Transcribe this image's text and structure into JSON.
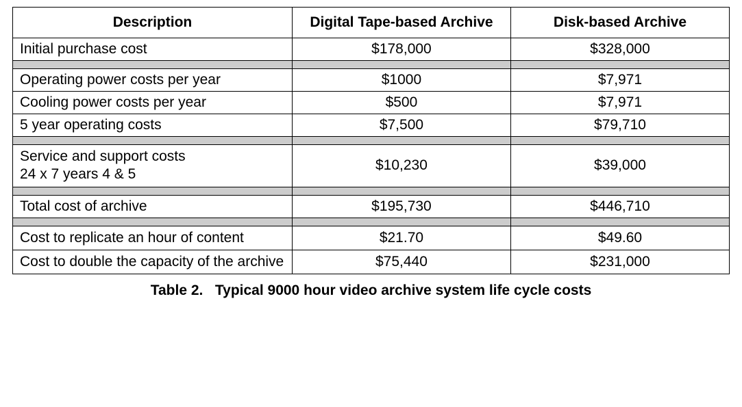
{
  "table": {
    "type": "table",
    "columns": [
      {
        "label": "Description",
        "align": "left",
        "width_pct": 39
      },
      {
        "label": "Digital Tape-based Archive",
        "align": "center",
        "width_pct": 30.5
      },
      {
        "label": "Disk-based Archive",
        "align": "center",
        "width_pct": 30.5
      }
    ],
    "sections": [
      {
        "rows": [
          {
            "desc": "Initial purchase cost",
            "col1": "$178,000",
            "col2": "$328,000"
          }
        ]
      },
      {
        "rows": [
          {
            "desc": "Operating power costs per year",
            "col1": "$1000",
            "col2": "$7,971"
          },
          {
            "desc": "Cooling power costs per year",
            "col1": "$500",
            "col2": "$7,971"
          },
          {
            "desc": "5 year operating costs",
            "col1": "$7,500",
            "col2": "$79,710"
          }
        ]
      },
      {
        "rows": [
          {
            "desc": "Service and support costs\n24 x 7 years 4 & 5",
            "col1": "$10,230",
            "col2": "$39,000",
            "multiline": true
          }
        ]
      },
      {
        "rows": [
          {
            "desc": "Total cost of archive",
            "col1": "$195,730",
            "col2": "$446,710"
          }
        ]
      },
      {
        "rows": [
          {
            "desc": "Cost to replicate an hour of content",
            "col1": "$21.70",
            "col2": "$49.60",
            "multiline": true
          },
          {
            "desc": "Cost to double the capacity of the archive",
            "col1": "$75,440",
            "col2": "$231,000",
            "multiline": true
          }
        ]
      }
    ],
    "header_fontsize": 21,
    "cell_fontsize": 21,
    "font_family": "Arial",
    "border_color": "#000000",
    "spacer_color": "#cccccc",
    "background_color": "#ffffff",
    "text_color": "#000000"
  },
  "caption": {
    "prefix": "Table 2.",
    "text": "Typical 9000 hour video archive system life cycle costs",
    "fontsize": 21,
    "font_weight": "bold"
  }
}
